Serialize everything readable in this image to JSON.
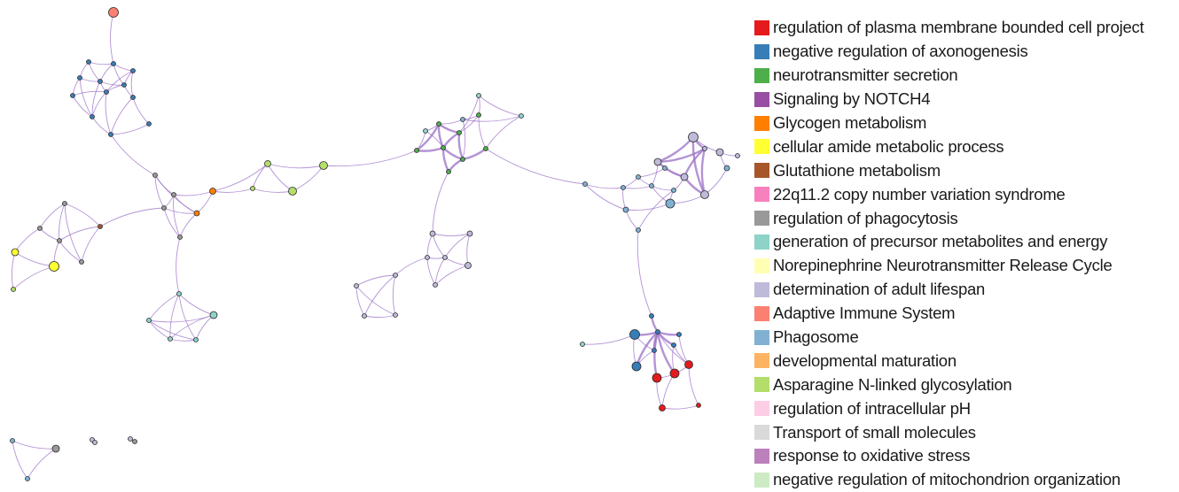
{
  "legend": [
    {
      "label": "regulation of plasma membrane bounded cell project",
      "color": "#e41a1c"
    },
    {
      "label": "negative regulation of axonogenesis",
      "color": "#377eb8"
    },
    {
      "label": "neurotransmitter secretion",
      "color": "#4daf4a"
    },
    {
      "label": "Signaling by NOTCH4",
      "color": "#984ea3"
    },
    {
      "label": "Glycogen metabolism",
      "color": "#ff7f00"
    },
    {
      "label": "cellular amide metabolic process",
      "color": "#ffff33"
    },
    {
      "label": "Glutathione metabolism",
      "color": "#a65628"
    },
    {
      "label": "22q11.2 copy number variation syndrome",
      "color": "#f781bf"
    },
    {
      "label": "regulation of phagocytosis",
      "color": "#999999"
    },
    {
      "label": "generation of precursor metabolites and energy",
      "color": "#8dd3c7"
    },
    {
      "label": "Norepinephrine Neurotransmitter Release Cycle",
      "color": "#ffffb3"
    },
    {
      "label": "determination of adult lifespan",
      "color": "#bebada"
    },
    {
      "label": "Adaptive Immune System",
      "color": "#fb8072"
    },
    {
      "label": "Phagosome",
      "color": "#80b1d3"
    },
    {
      "label": "developmental maturation",
      "color": "#fdb462"
    },
    {
      "label": "Asparagine N-linked glycosylation",
      "color": "#b3de69"
    },
    {
      "label": "regulation of intracellular pH",
      "color": "#fccde5"
    },
    {
      "label": "Transport of small molecules",
      "color": "#d9d9d9"
    },
    {
      "label": "response to oxidative stress",
      "color": "#bc80bd"
    },
    {
      "label": "negative regulation of mitochondrion organization",
      "color": "#ccebc5"
    }
  ],
  "colors": {
    "edge": "#9a6fc6",
    "edge_strong": "#6a3fa8",
    "node_outline": "#2b2b2b"
  }
}
